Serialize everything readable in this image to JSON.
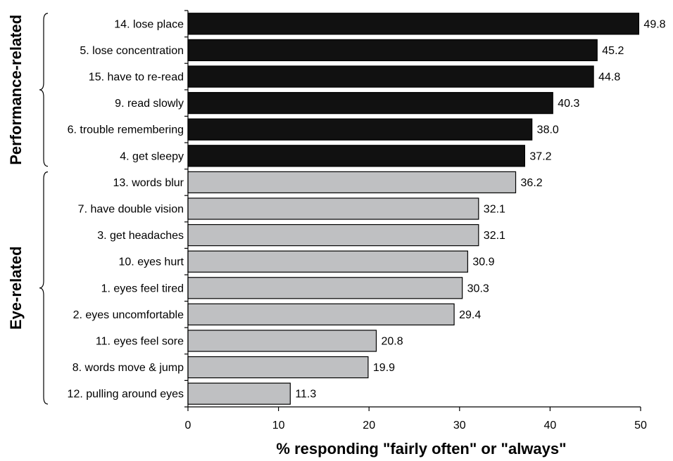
{
  "chart_data": {
    "type": "bar",
    "orientation": "horizontal",
    "title": "",
    "xlabel": "% responding \"fairly often\" or \"always\"",
    "ylabel": "",
    "xlim": [
      0,
      50
    ],
    "xticks": [
      0,
      10,
      20,
      30,
      40,
      50
    ],
    "grid": false,
    "groups": [
      {
        "label": "Performance-related",
        "color": "#111111"
      },
      {
        "label": "Eye-related",
        "color": "#bfc0c2"
      }
    ],
    "categories": [
      "14. lose place",
      "5. lose concentration",
      "15. have to re-read",
      "9. read slowly",
      "6. trouble remembering",
      "4. get sleepy",
      "13. words blur",
      "7. have double vision",
      "3. get headaches",
      "10. eyes hurt",
      "1. eyes feel tired",
      "2. eyes uncomfortable",
      "11. eyes feel sore",
      "8. words move & jump",
      "12. pulling around eyes"
    ],
    "values": [
      49.8,
      45.2,
      44.8,
      40.3,
      38.0,
      37.2,
      36.2,
      32.1,
      32.1,
      30.9,
      30.3,
      29.4,
      20.8,
      19.9,
      11.3
    ],
    "value_labels": [
      "49.8",
      "45.2",
      "44.8",
      "40.3",
      "38.0",
      "37.2",
      "36.2",
      "32.1",
      "32.1",
      "30.9",
      "30.3",
      "29.4",
      "20.8",
      "19.9",
      "11.3"
    ],
    "group_of_bar": [
      0,
      0,
      0,
      0,
      0,
      0,
      1,
      1,
      1,
      1,
      1,
      1,
      1,
      1,
      1
    ]
  }
}
